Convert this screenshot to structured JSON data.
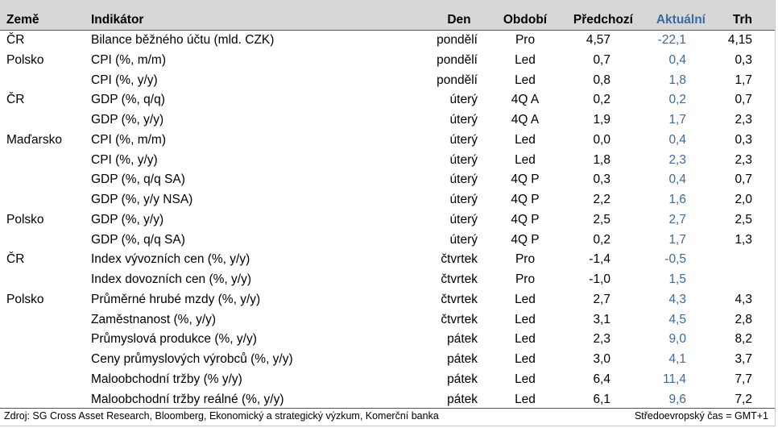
{
  "table": {
    "headers": {
      "country": "Země",
      "indicator": "Indikátor",
      "day": "Den",
      "period": "Období",
      "previous": "Předchozí",
      "actual": "Aktuální",
      "market": "Trh"
    },
    "rows": [
      {
        "country": "ČR",
        "indicator": "Bilance běžného účtu (mld. CZK)",
        "day": "pondělí",
        "period": "Pro",
        "previous": "4,57",
        "actual": "-22,1",
        "market": "4,15"
      },
      {
        "country": "Polsko",
        "indicator": "CPI (%, m/m)",
        "day": "pondělí",
        "period": "Led",
        "previous": "0,7",
        "actual": "0,4",
        "market": "0,3"
      },
      {
        "country": "",
        "indicator": "CPI (%, y/y)",
        "day": "pondělí",
        "period": "Led",
        "previous": "0,8",
        "actual": "1,8",
        "market": "1,7"
      },
      {
        "country": "ČR",
        "indicator": "GDP (%, q/q)",
        "day": "úterý",
        "period": "4Q A",
        "previous": "0,2",
        "actual": "0,2",
        "market": "0,7"
      },
      {
        "country": "",
        "indicator": "GDP (%, y/y)",
        "day": "úterý",
        "period": "4Q A",
        "previous": "1,9",
        "actual": "1,7",
        "market": "2,3"
      },
      {
        "country": "Maďarsko",
        "indicator": "CPI (%, m/m)",
        "day": "úterý",
        "period": "Led",
        "previous": "0,0",
        "actual": "0,4",
        "market": "0,3"
      },
      {
        "country": "",
        "indicator": "CPI (%, y/y)",
        "day": "úterý",
        "period": "Led",
        "previous": "1,8",
        "actual": "2,3",
        "market": "2,3"
      },
      {
        "country": "",
        "indicator": "GDP (%, q/q SA)",
        "day": "úterý",
        "period": "4Q P",
        "previous": "0,3",
        "actual": "0,4",
        "market": "0,7"
      },
      {
        "country": "",
        "indicator": "GDP (%, y/y NSA)",
        "day": "úterý",
        "period": "4Q P",
        "previous": "2,2",
        "actual": "1,6",
        "market": "2,0"
      },
      {
        "country": "Polsko",
        "indicator": "GDP (%, y/y)",
        "day": "úterý",
        "period": "4Q P",
        "previous": "2,5",
        "actual": "2,7",
        "market": "2,5"
      },
      {
        "country": "",
        "indicator": "GDP (%, q/q SA)",
        "day": "úterý",
        "period": "4Q P",
        "previous": "0,2",
        "actual": "1,7",
        "market": "1,3"
      },
      {
        "country": "ČR",
        "indicator": "Index vývozních cen (%, y/y)",
        "day": "čtvrtek",
        "period": "Pro",
        "previous": "-1,4",
        "actual": "-0,5",
        "market": ""
      },
      {
        "country": "",
        "indicator": "Index dovozních cen (%, y/y)",
        "day": "čtvrtek",
        "period": "Pro",
        "previous": "-1,0",
        "actual": "1,5",
        "market": ""
      },
      {
        "country": "Polsko",
        "indicator": "Průměrné hrubé mzdy (%, y/y)",
        "day": "čtvrtek",
        "period": "Led",
        "previous": "2,7",
        "actual": "4,3",
        "market": "4,3"
      },
      {
        "country": "",
        "indicator": "Zaměstnanost (%, y/y)",
        "day": "čtvrtek",
        "period": "Led",
        "previous": "3,1",
        "actual": "4,5",
        "market": "2,8"
      },
      {
        "country": "",
        "indicator": "Průmyslová produkce (%, y/y)",
        "day": "pátek",
        "period": "Led",
        "previous": "2,3",
        "actual": "9,0",
        "market": "8,2"
      },
      {
        "country": "",
        "indicator": "Ceny průmyslových výrobců (%, y/y)",
        "day": "pátek",
        "period": "Led",
        "previous": "3,0",
        "actual": "4,1",
        "market": "3,7"
      },
      {
        "country": "",
        "indicator": "Maloobchodní tržby (% y/y)",
        "day": "pátek",
        "period": "Led",
        "previous": "6,4",
        "actual": "11,4",
        "market": "7,7"
      },
      {
        "country": "",
        "indicator": "Maloobchodní tržby reálné (%, y/y)",
        "day": "pátek",
        "period": "Led",
        "previous": "6,1",
        "actual": "9,6",
        "market": "7,2"
      }
    ]
  },
  "footer": {
    "source": "Zdroj: SG Cross Asset Research, Bloomberg, Ekonomický a strategický výzkum, Komerční banka",
    "timezone": "Středoevropský čas = GMT+1"
  },
  "colors": {
    "header_background": "#d7d7d7",
    "actual_value": "#3a6aa4",
    "text": "#000000"
  }
}
